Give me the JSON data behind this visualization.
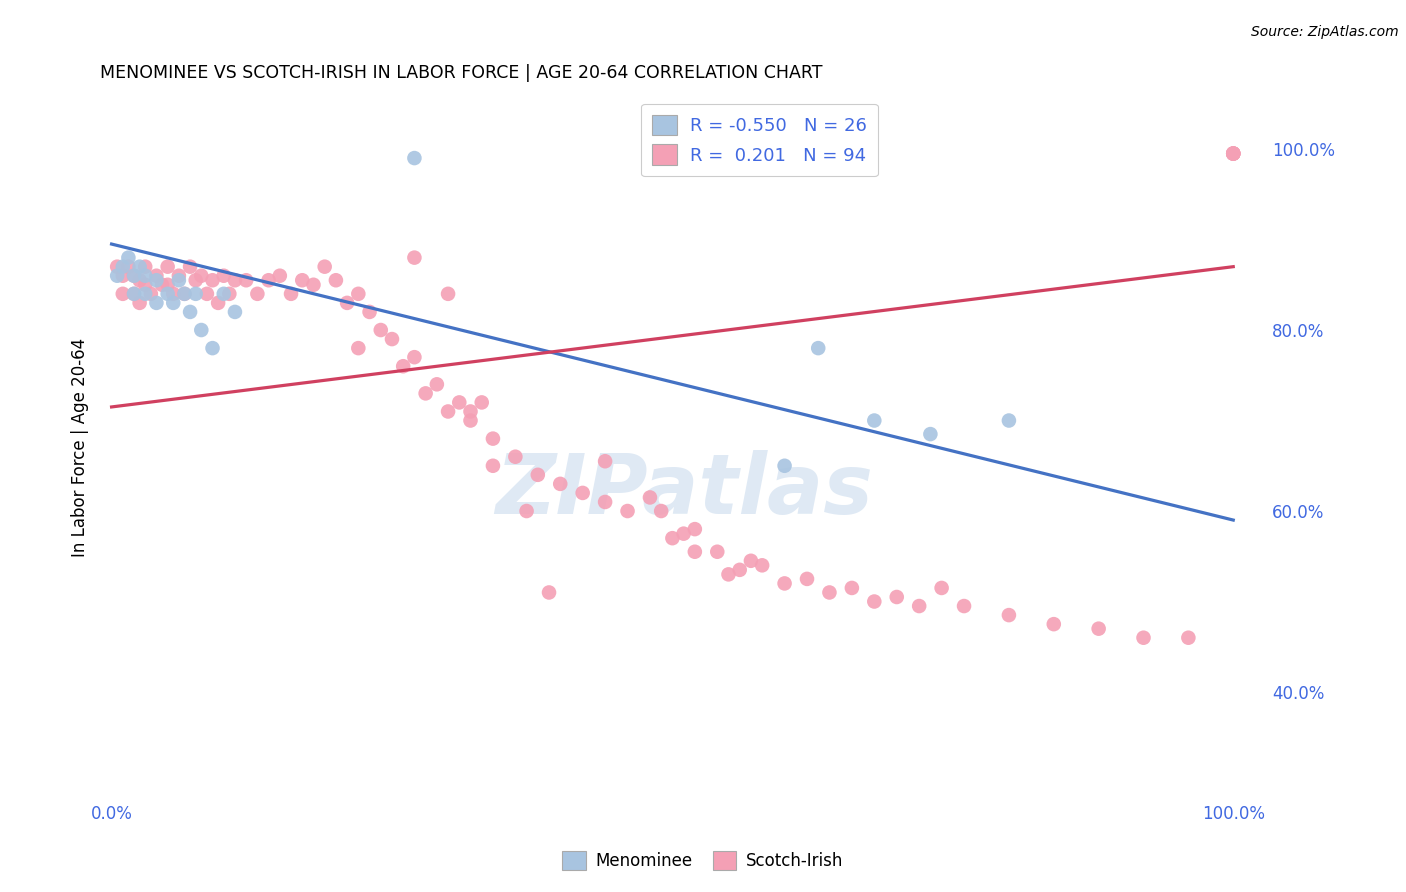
{
  "title": "MENOMINEE VS SCOTCH-IRISH IN LABOR FORCE | AGE 20-64 CORRELATION CHART",
  "source": "Source: ZipAtlas.com",
  "ylabel": "In Labor Force | Age 20-64",
  "watermark": "ZIPatlas",
  "menominee_label": "Menominee",
  "scotch_irish_label": "Scotch-Irish",
  "legend_line1": "R = -0.550   N = 26",
  "legend_line2": "R =  0.201   N = 94",
  "menominee_color": "#a8c4e0",
  "scotch_irish_color": "#f4a0b5",
  "trend_blue": "#4472c4",
  "trend_pink": "#d04060",
  "background_color": "#ffffff",
  "grid_color": "#cccccc",
  "axis_label_color": "#4169e1",
  "blue_slope": -0.305,
  "blue_intercept": 0.895,
  "pink_slope": 0.155,
  "pink_intercept": 0.715,
  "xlim": [
    -0.01,
    1.03
  ],
  "ylim": [
    0.28,
    1.06
  ],
  "yticks": [
    1.0,
    0.8,
    0.6,
    0.4
  ],
  "ytick_labels": [
    "100.0%",
    "80.0%",
    "60.0%",
    "40.0%"
  ],
  "menominee_x": [
    0.005,
    0.01,
    0.015,
    0.02,
    0.02,
    0.025,
    0.03,
    0.03,
    0.04,
    0.04,
    0.05,
    0.055,
    0.06,
    0.065,
    0.07,
    0.075,
    0.08,
    0.09,
    0.1,
    0.11,
    0.27,
    0.6,
    0.63,
    0.68,
    0.73,
    0.8
  ],
  "menominee_y": [
    0.86,
    0.87,
    0.88,
    0.86,
    0.84,
    0.87,
    0.86,
    0.84,
    0.855,
    0.83,
    0.84,
    0.83,
    0.855,
    0.84,
    0.82,
    0.84,
    0.8,
    0.78,
    0.84,
    0.82,
    0.99,
    0.65,
    0.78,
    0.7,
    0.685,
    0.7
  ],
  "scotch_irish_x": [
    0.005,
    0.01,
    0.01,
    0.015,
    0.02,
    0.02,
    0.025,
    0.025,
    0.03,
    0.03,
    0.035,
    0.04,
    0.045,
    0.05,
    0.05,
    0.055,
    0.06,
    0.065,
    0.07,
    0.075,
    0.08,
    0.085,
    0.09,
    0.095,
    0.1,
    0.105,
    0.11,
    0.12,
    0.13,
    0.14,
    0.15,
    0.16,
    0.17,
    0.18,
    0.19,
    0.2,
    0.21,
    0.22,
    0.22,
    0.23,
    0.24,
    0.25,
    0.26,
    0.27,
    0.28,
    0.29,
    0.3,
    0.31,
    0.32,
    0.33,
    0.34,
    0.36,
    0.38,
    0.4,
    0.42,
    0.44,
    0.44,
    0.46,
    0.48,
    0.49,
    0.5,
    0.51,
    0.52,
    0.52,
    0.54,
    0.55,
    0.56,
    0.57,
    0.58,
    0.6,
    0.62,
    0.64,
    0.66,
    0.68,
    0.7,
    0.72,
    0.74,
    0.76,
    0.8,
    0.84,
    0.88,
    0.92,
    0.96,
    1.0,
    1.0,
    1.0,
    1.0,
    1.0,
    0.27,
    0.3,
    0.32,
    0.34,
    0.37,
    0.39
  ],
  "scotch_irish_y": [
    0.87,
    0.86,
    0.84,
    0.87,
    0.86,
    0.84,
    0.855,
    0.83,
    0.87,
    0.85,
    0.84,
    0.86,
    0.85,
    0.87,
    0.85,
    0.84,
    0.86,
    0.84,
    0.87,
    0.855,
    0.86,
    0.84,
    0.855,
    0.83,
    0.86,
    0.84,
    0.855,
    0.855,
    0.84,
    0.855,
    0.86,
    0.84,
    0.855,
    0.85,
    0.87,
    0.855,
    0.83,
    0.84,
    0.78,
    0.82,
    0.8,
    0.79,
    0.76,
    0.77,
    0.73,
    0.74,
    0.71,
    0.72,
    0.7,
    0.72,
    0.68,
    0.66,
    0.64,
    0.63,
    0.62,
    0.61,
    0.655,
    0.6,
    0.615,
    0.6,
    0.57,
    0.575,
    0.58,
    0.555,
    0.555,
    0.53,
    0.535,
    0.545,
    0.54,
    0.52,
    0.525,
    0.51,
    0.515,
    0.5,
    0.505,
    0.495,
    0.515,
    0.495,
    0.485,
    0.475,
    0.47,
    0.46,
    0.46,
    0.995,
    0.995,
    0.995,
    0.995,
    0.995,
    0.88,
    0.84,
    0.71,
    0.65,
    0.6,
    0.51
  ]
}
